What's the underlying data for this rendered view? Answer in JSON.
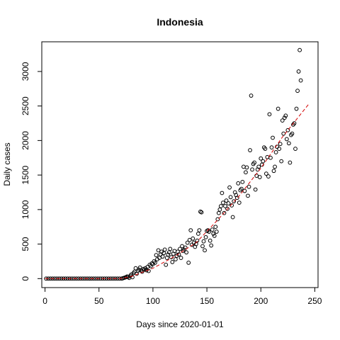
{
  "chart_data": {
    "type": "scatter",
    "title": "Indonesia",
    "xlabel": "Days since 2020-01-01",
    "ylabel": "Daily cases",
    "xlim": [
      -3,
      253
    ],
    "ylim": [
      -130,
      3430
    ],
    "x_ticks": [
      0,
      50,
      100,
      150,
      200,
      250
    ],
    "y_ticks": [
      0,
      500,
      1000,
      1500,
      2000,
      2500,
      3000
    ],
    "grid": false,
    "legend": "none",
    "points": [
      [
        1,
        0
      ],
      [
        3,
        0
      ],
      [
        5,
        0
      ],
      [
        7,
        0
      ],
      [
        9,
        0
      ],
      [
        11,
        0
      ],
      [
        13,
        0
      ],
      [
        15,
        0
      ],
      [
        17,
        0
      ],
      [
        19,
        0
      ],
      [
        21,
        0
      ],
      [
        23,
        0
      ],
      [
        25,
        0
      ],
      [
        27,
        0
      ],
      [
        29,
        0
      ],
      [
        31,
        0
      ],
      [
        33,
        0
      ],
      [
        35,
        0
      ],
      [
        37,
        0
      ],
      [
        39,
        0
      ],
      [
        41,
        0
      ],
      [
        43,
        0
      ],
      [
        45,
        0
      ],
      [
        47,
        0
      ],
      [
        49,
        0
      ],
      [
        51,
        0
      ],
      [
        53,
        0
      ],
      [
        55,
        0
      ],
      [
        57,
        0
      ],
      [
        59,
        0
      ],
      [
        61,
        0
      ],
      [
        63,
        0
      ],
      [
        65,
        0
      ],
      [
        67,
        0
      ],
      [
        69,
        0
      ],
      [
        71,
        0
      ],
      [
        72,
        5
      ],
      [
        73,
        10
      ],
      [
        74,
        15
      ],
      [
        75,
        20
      ],
      [
        76,
        30
      ],
      [
        77,
        25
      ],
      [
        78,
        10
      ],
      [
        79,
        40
      ],
      [
        80,
        60
      ],
      [
        81,
        20
      ],
      [
        82,
        80
      ],
      [
        83,
        100
      ],
      [
        84,
        150
      ],
      [
        85,
        70
      ],
      [
        86,
        110
      ],
      [
        87,
        130
      ],
      [
        88,
        160
      ],
      [
        89,
        120
      ],
      [
        90,
        100
      ],
      [
        91,
        140
      ],
      [
        92,
        130
      ],
      [
        93,
        150
      ],
      [
        94,
        120
      ],
      [
        95,
        170
      ],
      [
        96,
        110
      ],
      [
        97,
        200
      ],
      [
        98,
        180
      ],
      [
        99,
        220
      ],
      [
        100,
        210
      ],
      [
        101,
        250
      ],
      [
        102,
        230
      ],
      [
        103,
        340
      ],
      [
        104,
        280
      ],
      [
        105,
        410
      ],
      [
        106,
        300
      ],
      [
        107,
        350
      ],
      [
        108,
        390
      ],
      [
        109,
        320
      ],
      [
        110,
        370
      ],
      [
        111,
        420
      ],
      [
        112,
        200
      ],
      [
        113,
        300
      ],
      [
        114,
        350
      ],
      [
        115,
        380
      ],
      [
        116,
        430
      ],
      [
        117,
        310
      ],
      [
        118,
        240
      ],
      [
        119,
        360
      ],
      [
        120,
        400
      ],
      [
        121,
        280
      ],
      [
        122,
        330
      ],
      [
        123,
        390
      ],
      [
        124,
        350
      ],
      [
        125,
        430
      ],
      [
        126,
        300
      ],
      [
        127,
        470
      ],
      [
        128,
        400
      ],
      [
        129,
        420
      ],
      [
        130,
        450
      ],
      [
        131,
        380
      ],
      [
        132,
        520
      ],
      [
        133,
        230
      ],
      [
        134,
        560
      ],
      [
        135,
        700
      ],
      [
        136,
        490
      ],
      [
        137,
        580
      ],
      [
        138,
        520
      ],
      [
        139,
        460
      ],
      [
        140,
        500
      ],
      [
        141,
        550
      ],
      [
        142,
        650
      ],
      [
        143,
        700
      ],
      [
        144,
        970
      ],
      [
        145,
        960
      ],
      [
        146,
        470
      ],
      [
        147,
        540
      ],
      [
        148,
        410
      ],
      [
        149,
        600
      ],
      [
        150,
        690
      ],
      [
        151,
        700
      ],
      [
        152,
        680
      ],
      [
        153,
        550
      ],
      [
        154,
        480
      ],
      [
        155,
        710
      ],
      [
        156,
        650
      ],
      [
        157,
        620
      ],
      [
        158,
        750
      ],
      [
        159,
        680
      ],
      [
        160,
        860
      ],
      [
        161,
        950
      ],
      [
        162,
        1000
      ],
      [
        163,
        1050
      ],
      [
        164,
        1240
      ],
      [
        165,
        1100
      ],
      [
        166,
        950
      ],
      [
        167,
        1050
      ],
      [
        168,
        1130
      ],
      [
        169,
        1010
      ],
      [
        170,
        1090
      ],
      [
        171,
        1320
      ],
      [
        172,
        1180
      ],
      [
        173,
        1060
      ],
      [
        174,
        890
      ],
      [
        175,
        1120
      ],
      [
        176,
        1250
      ],
      [
        177,
        1210
      ],
      [
        178,
        1170
      ],
      [
        179,
        1380
      ],
      [
        180,
        1100
      ],
      [
        181,
        1280
      ],
      [
        182,
        1300
      ],
      [
        183,
        1400
      ],
      [
        184,
        1620
      ],
      [
        185,
        1270
      ],
      [
        186,
        1540
      ],
      [
        187,
        1610
      ],
      [
        188,
        1200
      ],
      [
        189,
        1330
      ],
      [
        190,
        1860
      ],
      [
        191,
        2650
      ],
      [
        192,
        1580
      ],
      [
        193,
        1660
      ],
      [
        194,
        1680
      ],
      [
        195,
        1290
      ],
      [
        196,
        1490
      ],
      [
        197,
        1580
      ],
      [
        198,
        1620
      ],
      [
        199,
        1470
      ],
      [
        200,
        1740
      ],
      [
        201,
        1650
      ],
      [
        202,
        1700
      ],
      [
        203,
        1900
      ],
      [
        204,
        1880
      ],
      [
        205,
        1520
      ],
      [
        206,
        1760
      ],
      [
        207,
        1480
      ],
      [
        208,
        2380
      ],
      [
        209,
        1750
      ],
      [
        210,
        1900
      ],
      [
        211,
        2040
      ],
      [
        212,
        1560
      ],
      [
        213,
        1620
      ],
      [
        214,
        1830
      ],
      [
        215,
        1910
      ],
      [
        216,
        2460
      ],
      [
        217,
        1880
      ],
      [
        218,
        1950
      ],
      [
        219,
        1700
      ],
      [
        220,
        2290
      ],
      [
        221,
        2100
      ],
      [
        222,
        2330
      ],
      [
        223,
        2360
      ],
      [
        224,
        2020
      ],
      [
        225,
        2150
      ],
      [
        226,
        1960
      ],
      [
        227,
        1680
      ],
      [
        228,
        2080
      ],
      [
        229,
        2100
      ],
      [
        230,
        2230
      ],
      [
        231,
        2250
      ],
      [
        232,
        1880
      ],
      [
        233,
        2460
      ],
      [
        234,
        2720
      ],
      [
        235,
        3000
      ],
      [
        236,
        3310
      ],
      [
        237,
        2870
      ]
    ],
    "trend": [
      [
        0,
        0
      ],
      [
        70,
        0
      ],
      [
        80,
        30
      ],
      [
        100,
        150
      ],
      [
        120,
        320
      ],
      [
        140,
        520
      ],
      [
        160,
        850
      ],
      [
        180,
        1200
      ],
      [
        200,
        1600
      ],
      [
        220,
        2050
      ],
      [
        245,
        2540
      ]
    ]
  }
}
